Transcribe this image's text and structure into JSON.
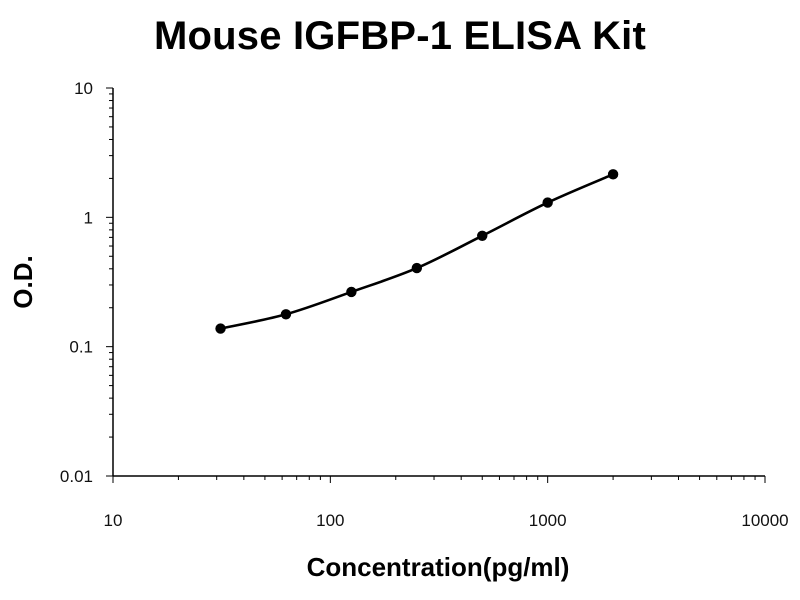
{
  "chart_data": {
    "type": "line",
    "title": "Mouse IGFBP-1 ELISA Kit",
    "xlabel": "Concentration(pg/ml)",
    "ylabel": "O.D.",
    "x_scale": "log",
    "y_scale": "log",
    "xlim": [
      10,
      10000
    ],
    "ylim": [
      0.01,
      10
    ],
    "x_ticks": [
      "10",
      "100",
      "1000",
      "10000"
    ],
    "y_ticks": [
      "0.01",
      "0.1",
      "1",
      "10"
    ],
    "grid": false,
    "legend": "none",
    "series": [
      {
        "x": [
          31.25,
          62.5,
          125,
          250,
          500,
          1000,
          2000
        ],
        "y": [
          0.138,
          0.178,
          0.265,
          0.405,
          0.72,
          1.3,
          2.15
        ],
        "color": "#000000",
        "marker": "circle",
        "smooth": true
      }
    ]
  }
}
